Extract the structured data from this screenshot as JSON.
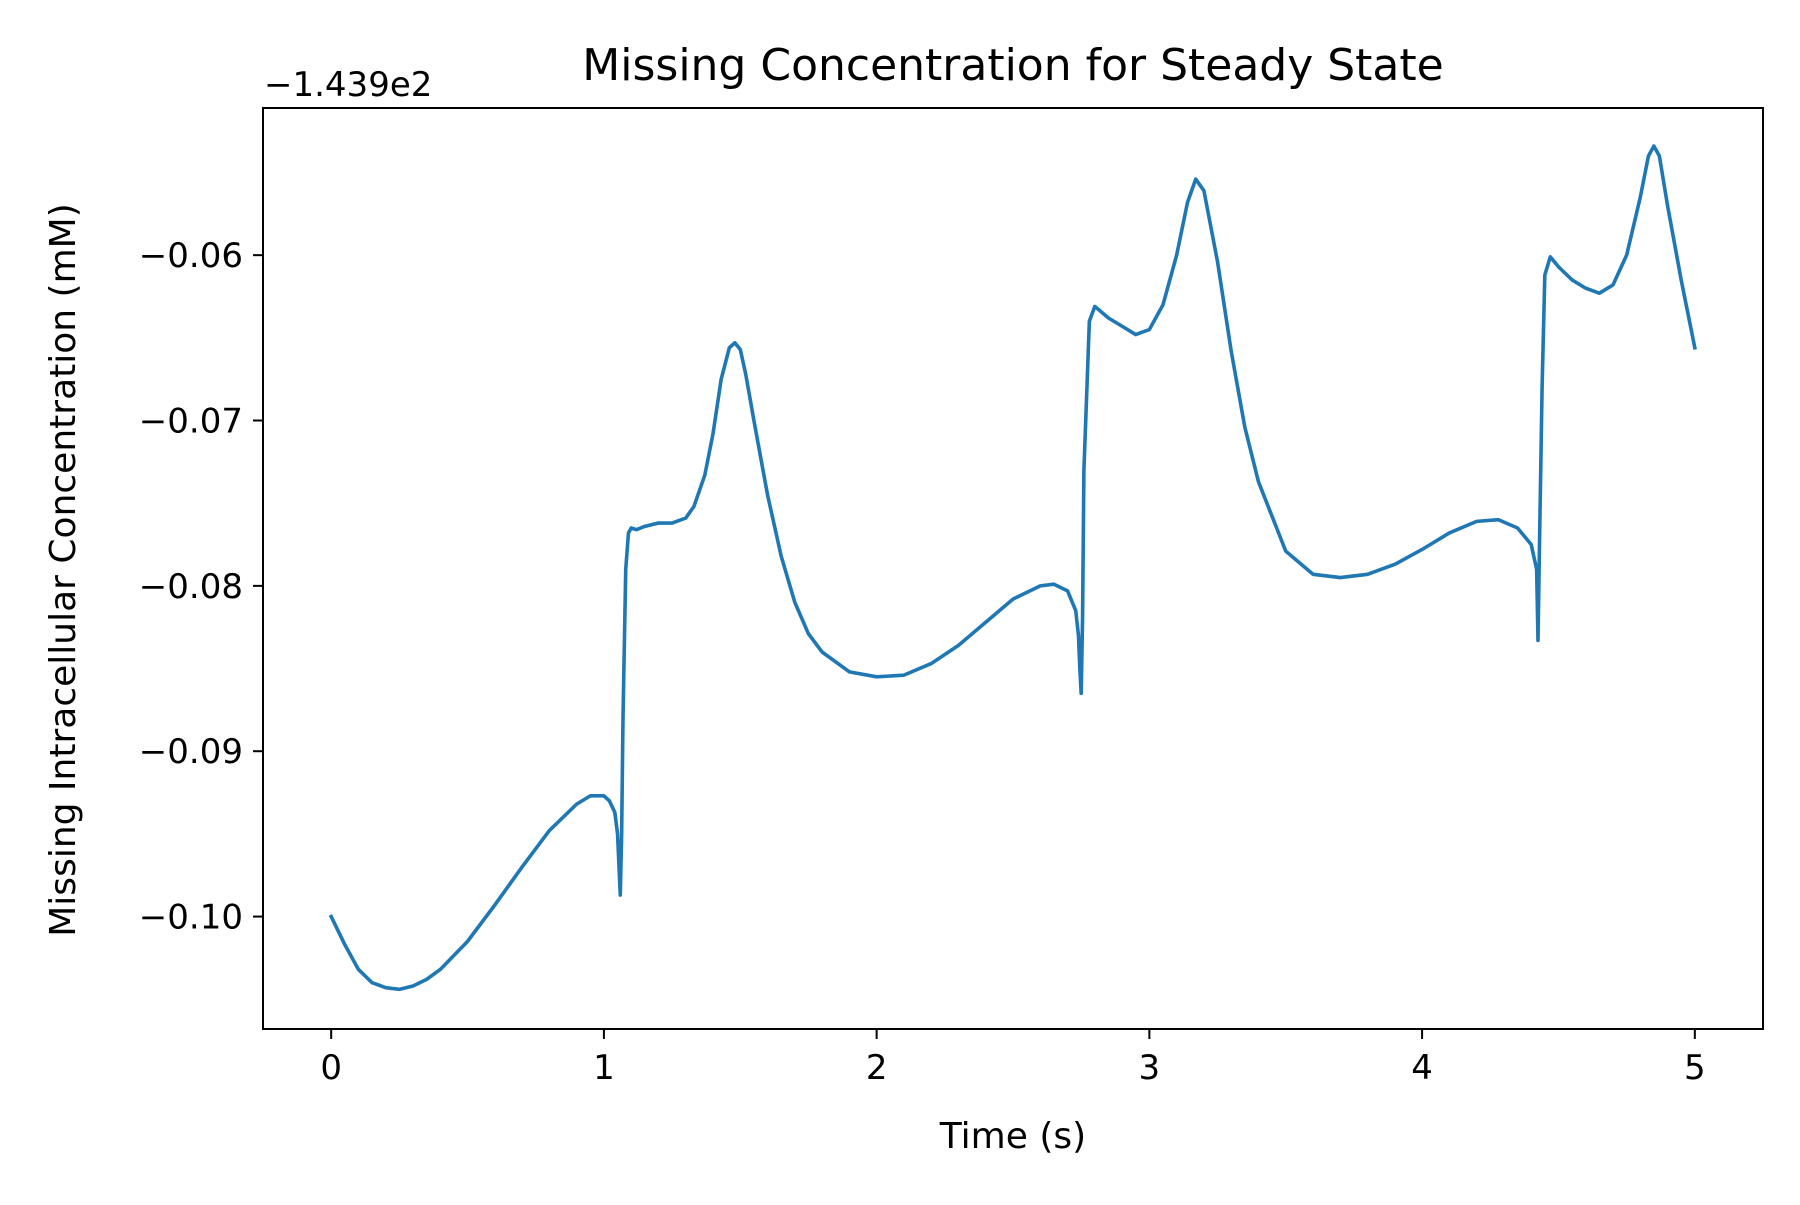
{
  "colors": {
    "series": "#1f77b4",
    "axes": "#000000",
    "background": "#ffffff"
  },
  "chart_data": {
    "type": "line",
    "title": "Missing Concentration for Steady State",
    "xlabel": "Time (s)",
    "ylabel": "Missing  Intracellular Concentration (mM)",
    "offset_text": "−1.439e2",
    "y_offset": -143.9,
    "xlim": [
      -0.25,
      5.25
    ],
    "ylim": [
      -0.1068,
      -0.0511
    ],
    "grid": false,
    "legend": "none",
    "x_ticks": [
      0,
      1,
      2,
      3,
      4,
      5
    ],
    "x_tick_labels": [
      "0",
      "1",
      "2",
      "3",
      "4",
      "5"
    ],
    "y_ticks": [
      -0.1,
      -0.09,
      -0.08,
      -0.07,
      -0.06
    ],
    "y_tick_labels": [
      "−0.10",
      "−0.09",
      "−0.08",
      "−0.07",
      "−0.06"
    ],
    "series": [
      {
        "values_note_unit": "offset-relative mM",
        "x": [
          0.0,
          0.05,
          0.1,
          0.15,
          0.2,
          0.25,
          0.3,
          0.35,
          0.4,
          0.5,
          0.6,
          0.7,
          0.8,
          0.9,
          0.95,
          1.0,
          1.02,
          1.04,
          1.05,
          1.06,
          1.065,
          1.07,
          1.08,
          1.09,
          1.1,
          1.12,
          1.15,
          1.2,
          1.25,
          1.3,
          1.33,
          1.37,
          1.4,
          1.43,
          1.46,
          1.48,
          1.5,
          1.52,
          1.55,
          1.6,
          1.65,
          1.7,
          1.75,
          1.8,
          1.9,
          2.0,
          2.1,
          2.2,
          2.3,
          2.4,
          2.5,
          2.6,
          2.65,
          2.7,
          2.73,
          2.74,
          2.745,
          2.75,
          2.755,
          2.76,
          2.78,
          2.8,
          2.85,
          2.9,
          2.95,
          3.0,
          3.05,
          3.1,
          3.14,
          3.17,
          3.2,
          3.25,
          3.3,
          3.35,
          3.4,
          3.5,
          3.6,
          3.7,
          3.8,
          3.9,
          4.0,
          4.1,
          4.2,
          4.28,
          4.35,
          4.4,
          4.42,
          4.425,
          4.43,
          4.44,
          4.45,
          4.47,
          4.5,
          4.55,
          4.6,
          4.65,
          4.7,
          4.75,
          4.8,
          4.83,
          4.85,
          4.87,
          4.9,
          4.95,
          5.0
        ],
        "y": [
          -0.1,
          -0.1017,
          -0.1032,
          -0.104,
          -0.1043,
          -0.1044,
          -0.1042,
          -0.1038,
          -0.1032,
          -0.1015,
          -0.0993,
          -0.097,
          -0.0948,
          -0.0932,
          -0.0927,
          -0.0927,
          -0.093,
          -0.0937,
          -0.095,
          -0.0987,
          -0.095,
          -0.088,
          -0.079,
          -0.0768,
          -0.0765,
          -0.0766,
          -0.0764,
          -0.0762,
          -0.0762,
          -0.0759,
          -0.0752,
          -0.0733,
          -0.0708,
          -0.0675,
          -0.0656,
          -0.0653,
          -0.0657,
          -0.0672,
          -0.07,
          -0.0745,
          -0.0782,
          -0.081,
          -0.0829,
          -0.084,
          -0.0852,
          -0.0855,
          -0.0854,
          -0.0847,
          -0.0836,
          -0.0822,
          -0.0808,
          -0.08,
          -0.0799,
          -0.0803,
          -0.0815,
          -0.083,
          -0.085,
          -0.0865,
          -0.082,
          -0.073,
          -0.064,
          -0.0631,
          -0.0638,
          -0.0643,
          -0.0648,
          -0.0645,
          -0.063,
          -0.06,
          -0.0568,
          -0.0554,
          -0.0561,
          -0.0604,
          -0.0658,
          -0.0704,
          -0.0737,
          -0.0779,
          -0.0793,
          -0.0795,
          -0.0793,
          -0.0787,
          -0.0778,
          -0.0768,
          -0.0761,
          -0.076,
          -0.0765,
          -0.0775,
          -0.079,
          -0.0833,
          -0.078,
          -0.068,
          -0.0612,
          -0.0601,
          -0.0607,
          -0.0615,
          -0.062,
          -0.0623,
          -0.0618,
          -0.06,
          -0.0565,
          -0.054,
          -0.0534,
          -0.054,
          -0.057,
          -0.0615,
          -0.0656
        ]
      }
    ]
  }
}
